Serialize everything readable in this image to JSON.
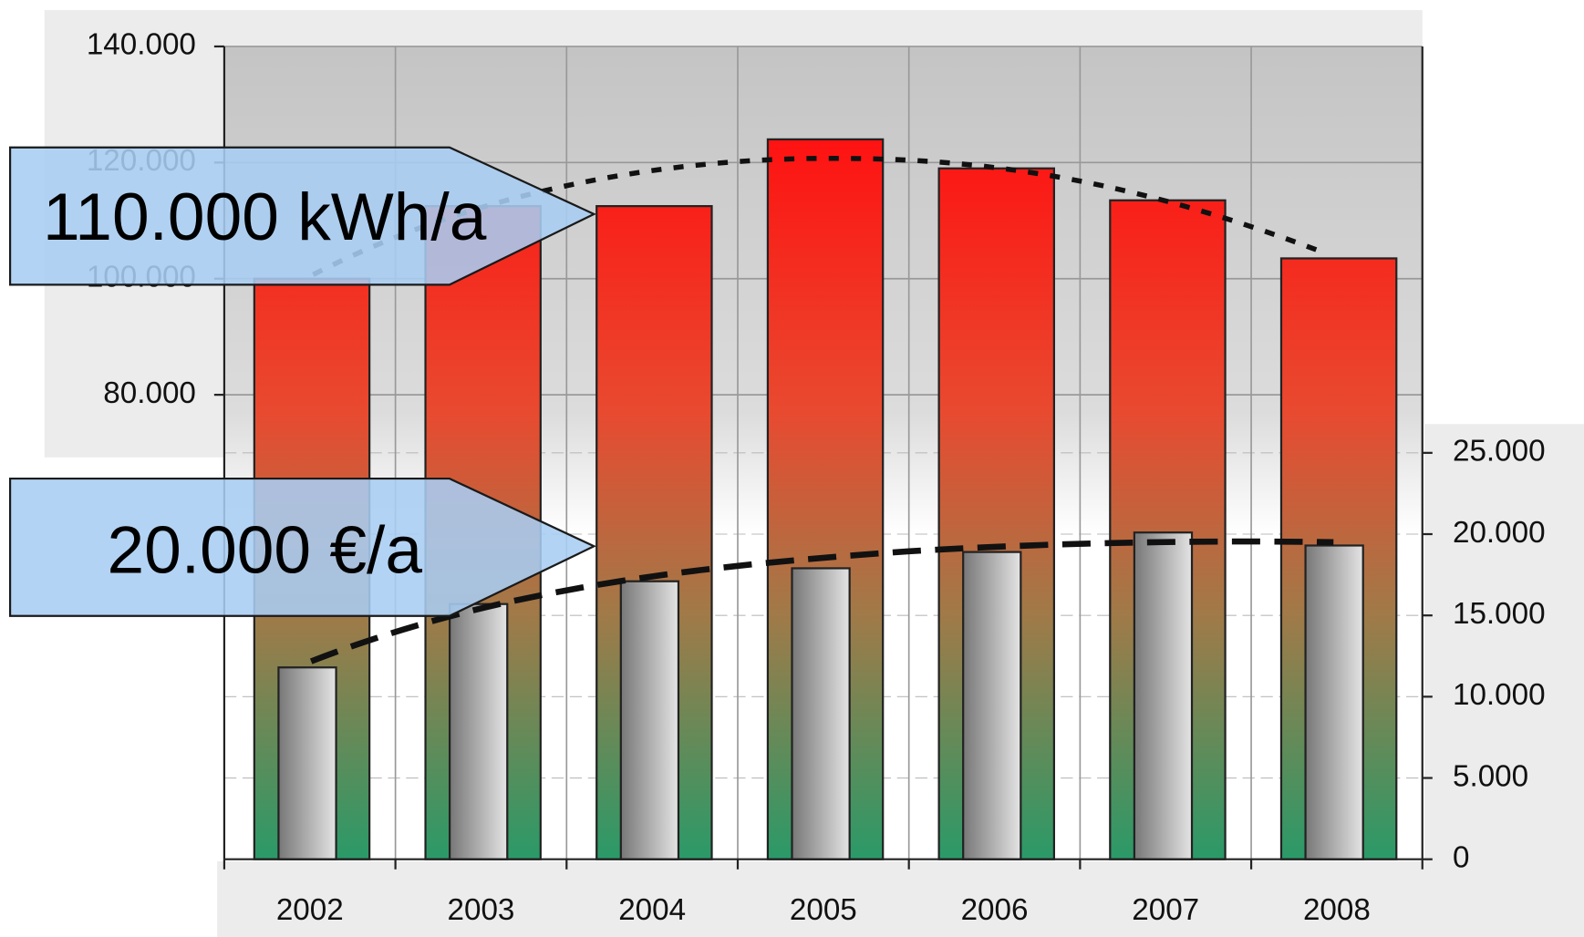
{
  "chart_data": {
    "type": "bar",
    "categories": [
      "2002",
      "2003",
      "2004",
      "2005",
      "2006",
      "2007",
      "2008"
    ],
    "series": [
      {
        "name": "kWh/a",
        "color": "#ff1a10",
        "values": [
          100000,
          112500,
          112500,
          124000,
          119000,
          113500,
          103500
        ]
      },
      {
        "name": "€/a",
        "color": "#999999",
        "axis": "y2",
        "values": [
          11800,
          15700,
          17100,
          17900,
          18900,
          20100,
          19300
        ]
      }
    ],
    "ylim": [
      0,
      140000
    ],
    "yticks": [
      {
        "value": 80000,
        "label": "80.000"
      },
      {
        "value": 100000,
        "label": "100.000"
      },
      {
        "value": 120000,
        "label": "120.000"
      },
      {
        "value": 140000,
        "label": "140.000"
      }
    ],
    "y2lim": [
      0,
      50000
    ],
    "y2ticks": [
      0,
      {
        "value": 5000,
        "label": "5.000"
      },
      {
        "value": 10000,
        "label": "10.000"
      },
      {
        "value": 15000,
        "label": "15.000"
      },
      {
        "value": 20000,
        "label": "20.000"
      },
      {
        "value": 25000,
        "label": "25.000"
      }
    ],
    "annotations": [
      "110.000 kWh/a",
      "20.000 €/a"
    ],
    "grid": true
  }
}
